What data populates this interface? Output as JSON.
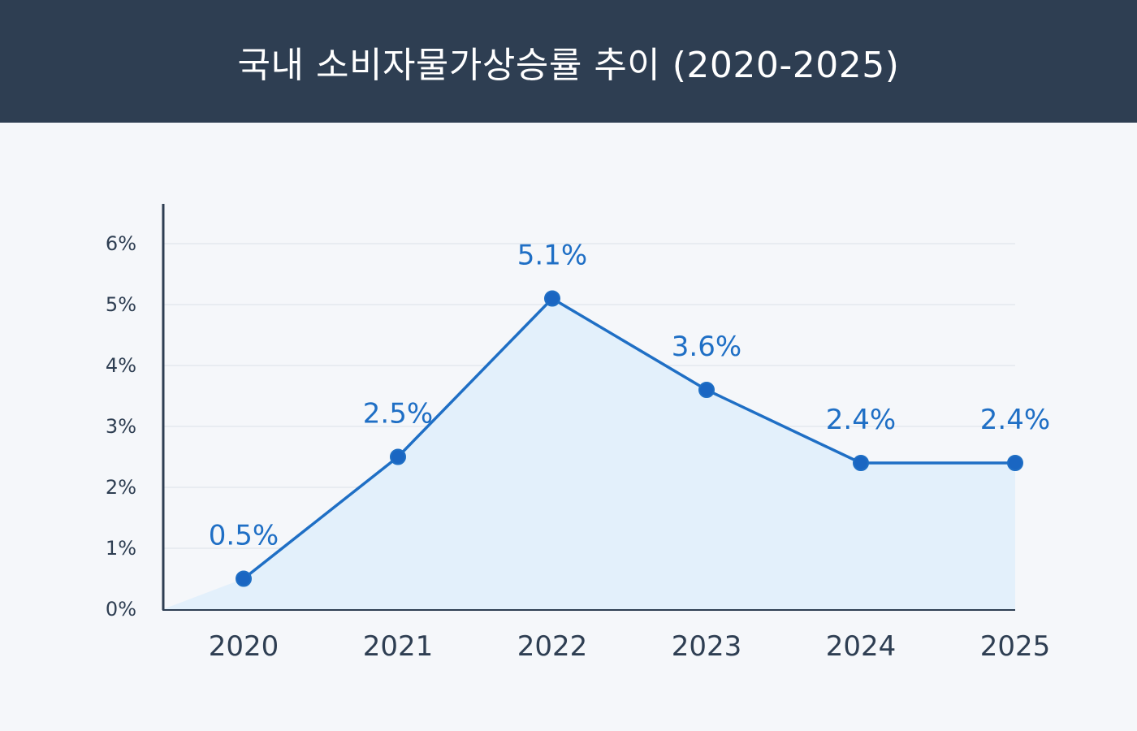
{
  "header": {
    "title": "국내 소비자물가상승률 추이 (2020-2025)"
  },
  "colors": {
    "header_bg": "#2e3e52",
    "page_bg": "#f5f7fa",
    "line": "#1f6fc5",
    "point": "#1a66c2",
    "area_fill": "#e3f0fb",
    "axis": "#2e3e52",
    "grid": "#e4e8ee"
  },
  "chart_data": {
    "type": "area",
    "title": "국내 소비자물가상승률 추이 (2020-2025)",
    "categories": [
      "2020",
      "2021",
      "2022",
      "2023",
      "2024",
      "2025"
    ],
    "series": [
      {
        "values": [
          0.5,
          2.5,
          5.1,
          3.6,
          2.4,
          2.4
        ]
      }
    ],
    "data_labels": [
      "0.5%",
      "2.5%",
      "5.1%",
      "3.6%",
      "2.4%",
      "2.4%"
    ],
    "y_ticks": [
      0,
      1,
      2,
      3,
      4,
      5,
      6
    ],
    "y_tick_labels": [
      "0%",
      "1%",
      "2%",
      "3%",
      "4%",
      "5%",
      "6%"
    ],
    "ylim": [
      0,
      6.67
    ],
    "xlabel": "",
    "ylabel": "",
    "grid": true,
    "legend": "none"
  }
}
